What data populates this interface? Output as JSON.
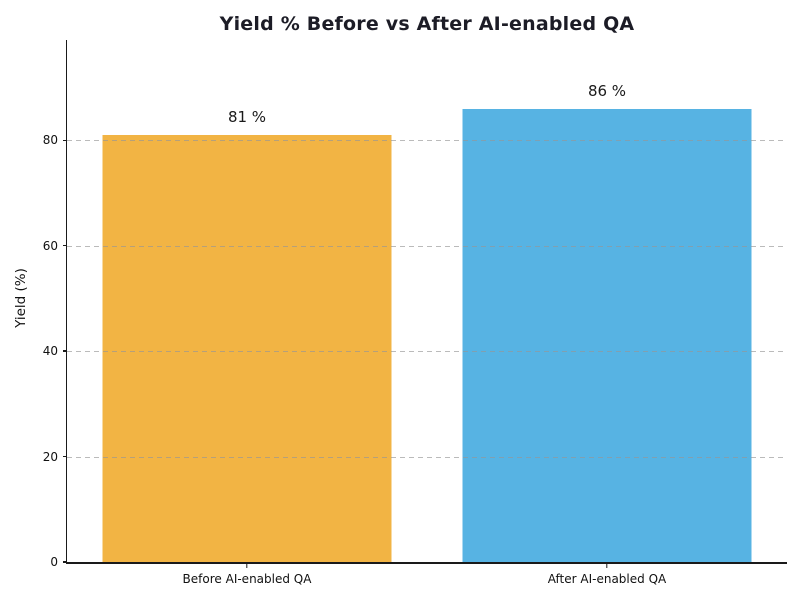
{
  "chart_data": {
    "type": "bar",
    "title": "Yield % Before vs After AI-enabled QA",
    "categories": [
      "Before AI-enabled QA",
      "After AI-enabled QA"
    ],
    "values": [
      81,
      86
    ],
    "bar_labels": [
      "81 %",
      "86 %"
    ],
    "bar_colors": [
      "#f2b444",
      "#57b3e3"
    ],
    "xlabel": "",
    "ylabel": "Yield (%)",
    "yticks": [
      "0",
      "20",
      "40",
      "60",
      "80"
    ],
    "ytick_values": [
      0,
      20,
      40,
      60,
      80
    ],
    "ylim": [
      0,
      99
    ],
    "grid": "horizontal-dashed-over-bars",
    "legend_position": "none",
    "colors": {
      "background": "#ffffff",
      "spine": "#1a1a1a",
      "gridline": "#999999",
      "title_text": "#1c1c26",
      "tick_text": "#111111"
    }
  }
}
